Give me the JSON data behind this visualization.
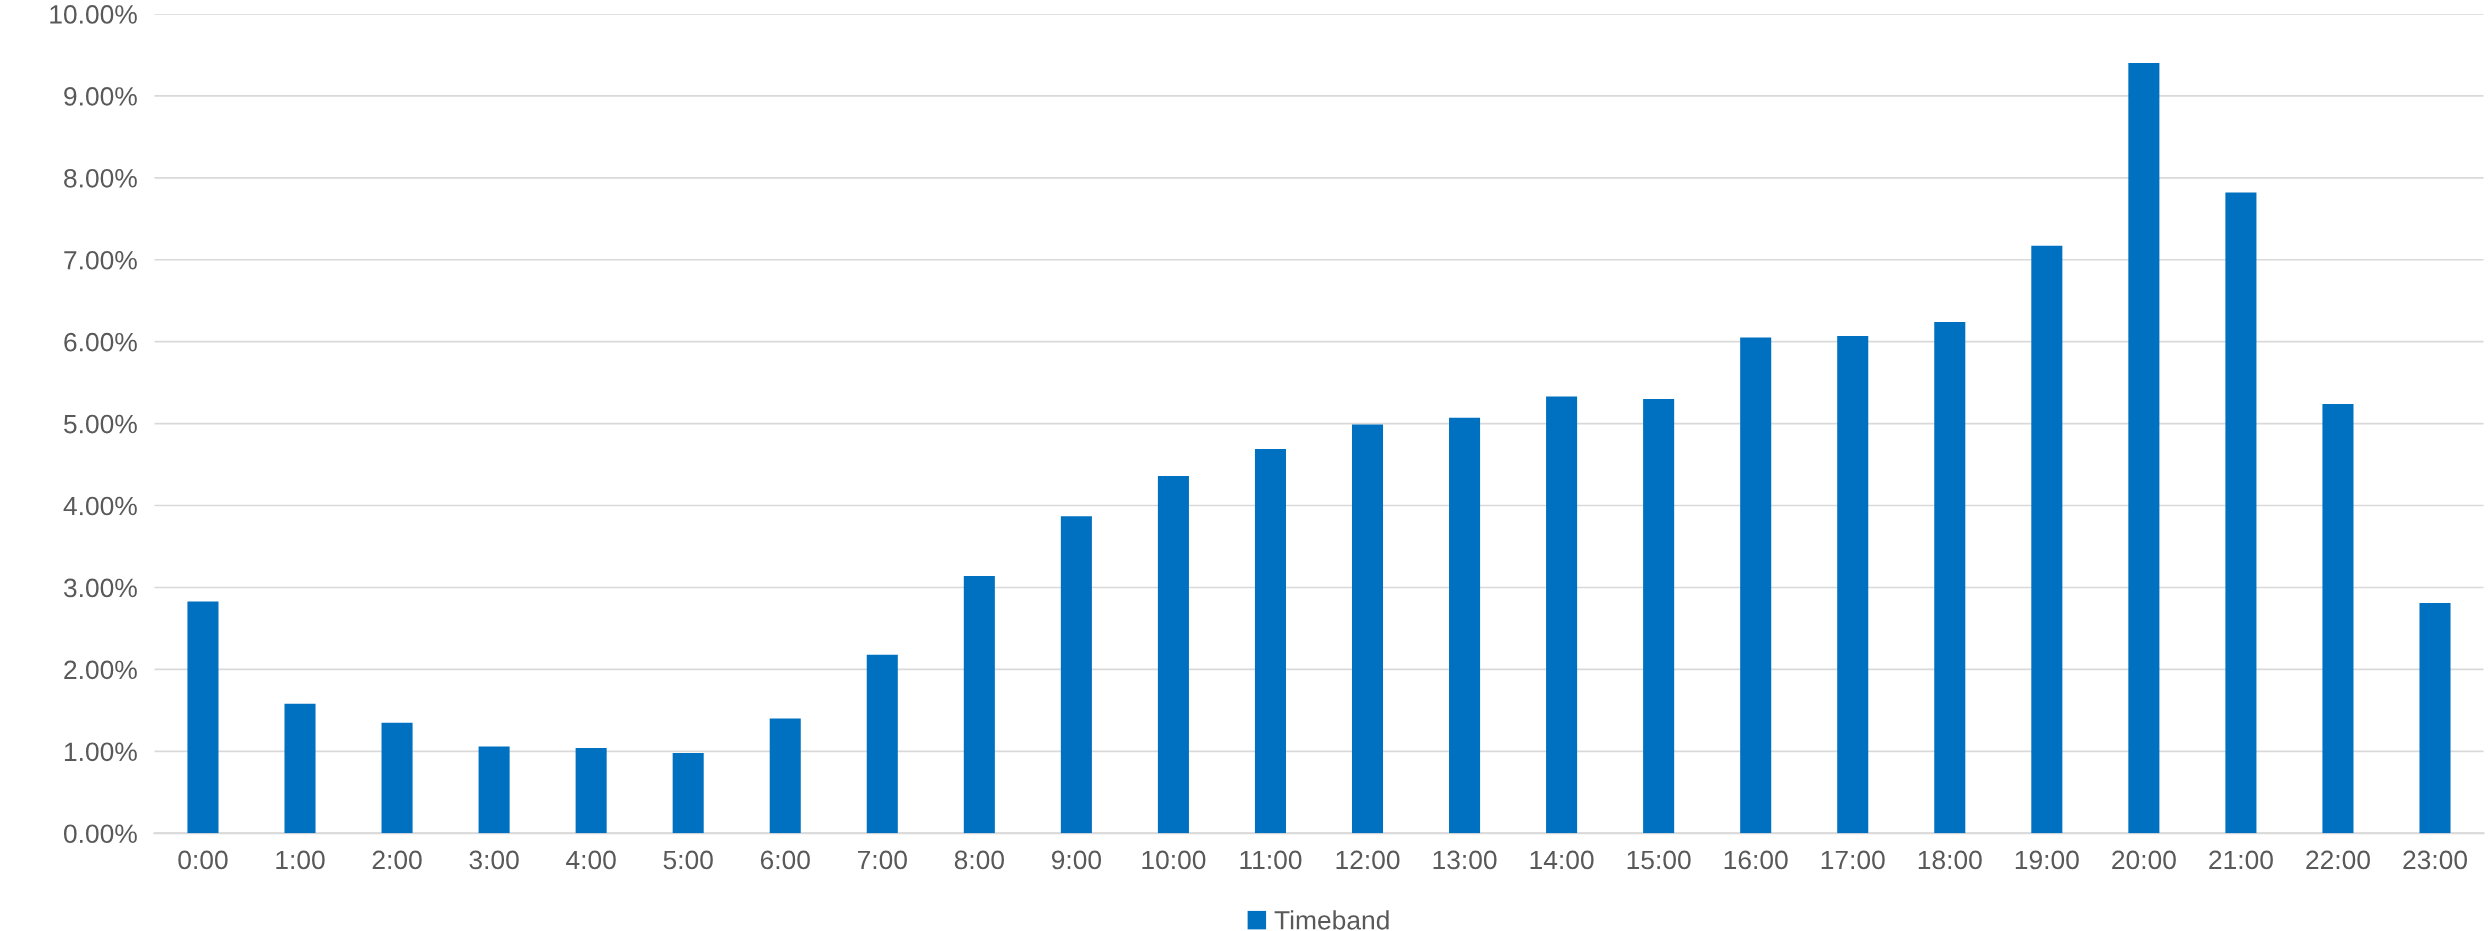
{
  "chart_data": {
    "type": "bar",
    "categories": [
      "0:00",
      "1:00",
      "2:00",
      "3:00",
      "4:00",
      "5:00",
      "6:00",
      "7:00",
      "8:00",
      "9:00",
      "10:00",
      "11:00",
      "12:00",
      "13:00",
      "14:00",
      "15:00",
      "16:00",
      "17:00",
      "18:00",
      "19:00",
      "20:00",
      "21:00",
      "22:00",
      "23:00"
    ],
    "series": [
      {
        "name": "Timeband",
        "color": "#0070c0",
        "values": [
          2.83,
          1.58,
          1.35,
          1.06,
          1.04,
          0.98,
          1.4,
          2.18,
          3.14,
          3.87,
          4.36,
          4.69,
          4.99,
          5.07,
          5.33,
          5.3,
          6.05,
          6.07,
          6.24,
          7.17,
          9.4,
          7.82,
          5.24,
          2.81
        ]
      }
    ],
    "ylim": [
      0,
      10
    ],
    "yticks": [
      {
        "value": 0,
        "label": "0.00%"
      },
      {
        "value": 1,
        "label": "1.00%"
      },
      {
        "value": 2,
        "label": "2.00%"
      },
      {
        "value": 3,
        "label": "3.00%"
      },
      {
        "value": 4,
        "label": "4.00%"
      },
      {
        "value": 5,
        "label": "5.00%"
      },
      {
        "value": 6,
        "label": "6.00%"
      },
      {
        "value": 7,
        "label": "7.00%"
      },
      {
        "value": 8,
        "label": "8.00%"
      },
      {
        "value": 9,
        "label": "9.00%"
      },
      {
        "value": 10,
        "label": "10.00%"
      }
    ],
    "grid": "y",
    "legend": "bottom"
  }
}
